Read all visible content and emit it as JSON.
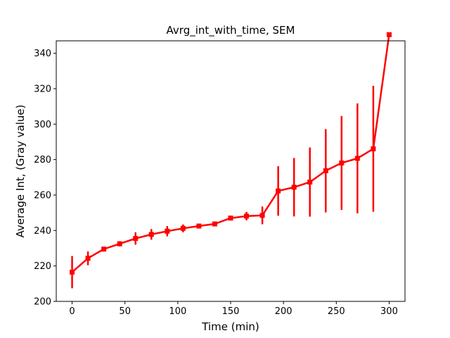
{
  "chart_data": {
    "type": "line",
    "title": "Avrg_int_with_time, SEM",
    "xlabel": "Time (min)",
    "ylabel": "Average Int, (Gray value)",
    "xlim": [
      -15,
      315
    ],
    "ylim": [
      200,
      347
    ],
    "x_ticks": [
      0,
      50,
      100,
      150,
      200,
      250,
      300
    ],
    "y_ticks": [
      200,
      220,
      240,
      260,
      280,
      300,
      320,
      340
    ],
    "grid": false,
    "legend": "none",
    "series": [
      {
        "color": "#ff0000",
        "marker": "square",
        "x": [
          0,
          15,
          30,
          45,
          60,
          75,
          90,
          105,
          120,
          135,
          150,
          165,
          180,
          195,
          210,
          225,
          240,
          255,
          270,
          285,
          300
        ],
        "y": [
          216.5,
          224.3,
          229.5,
          232.5,
          235.5,
          237.8,
          239.6,
          241.2,
          242.5,
          243.7,
          247.0,
          248.1,
          248.5,
          262.3,
          264.4,
          267.3,
          273.7,
          278.1,
          280.7,
          286.1,
          350.5
        ],
        "error": [
          9.1,
          3.9,
          1.3,
          1.5,
          3.5,
          3.0,
          2.9,
          2.2,
          1.0,
          1.3,
          0.7,
          2.4,
          5.0,
          14.0,
          16.5,
          19.5,
          23.5,
          26.5,
          31.0,
          35.5,
          0
        ]
      }
    ]
  }
}
